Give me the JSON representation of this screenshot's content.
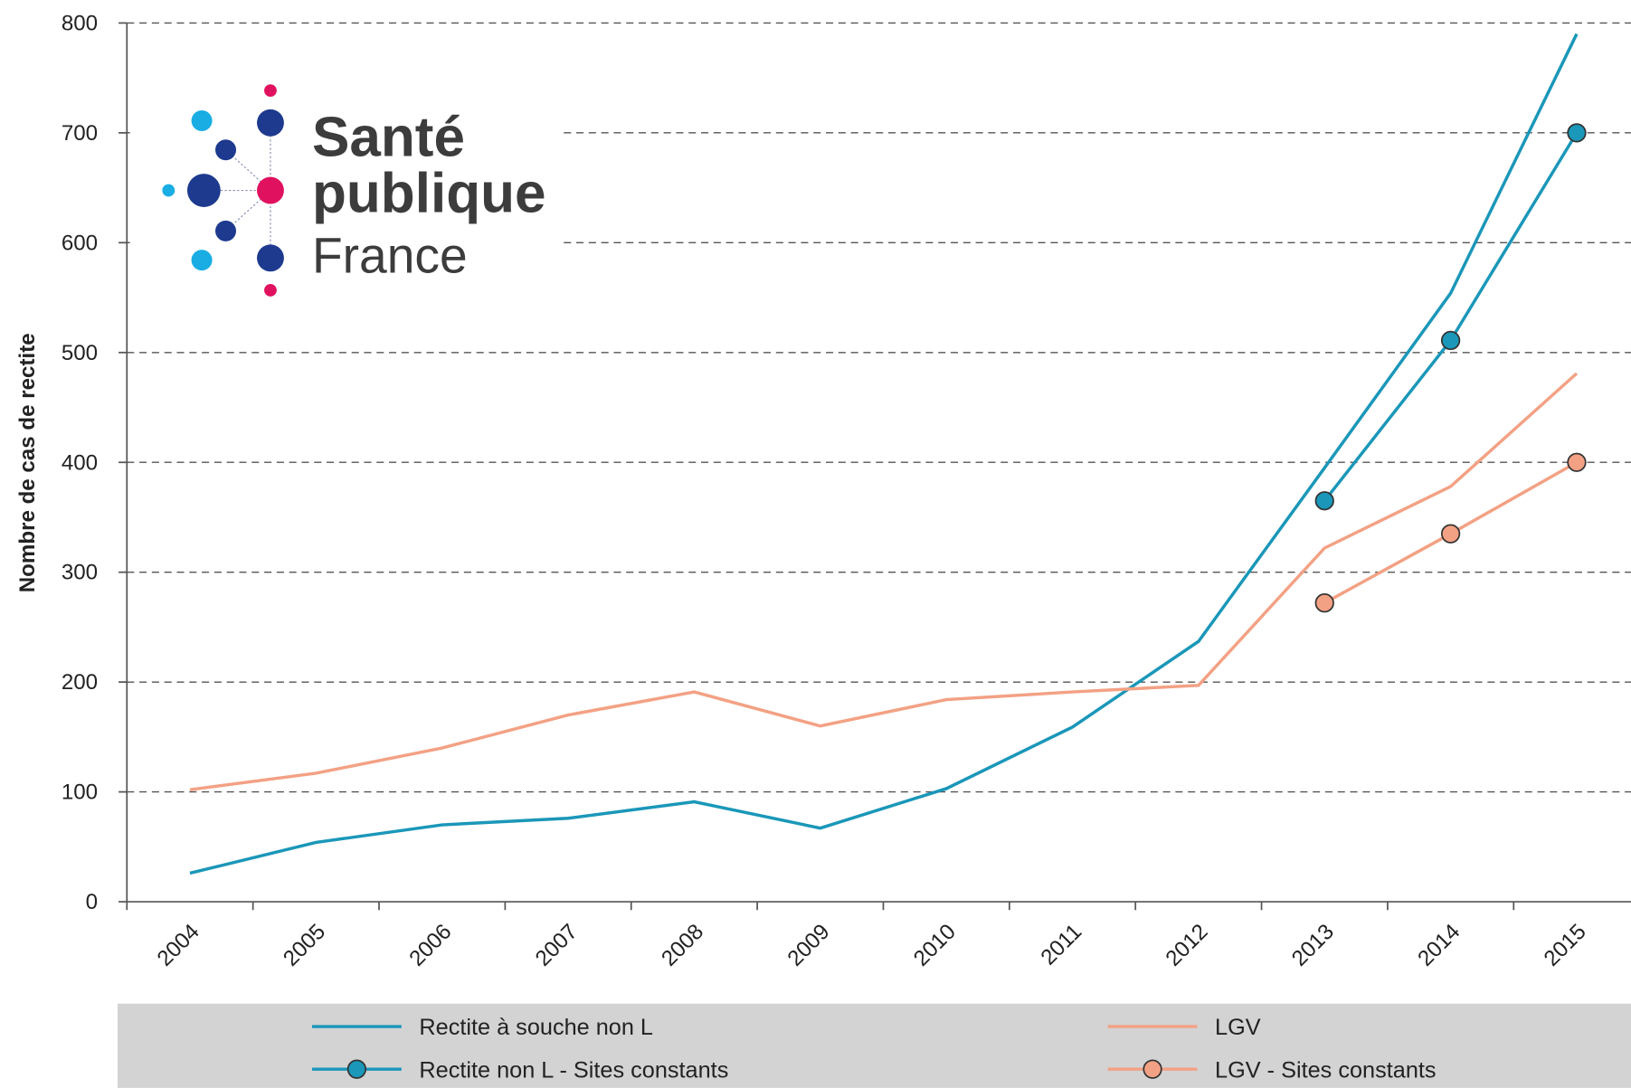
{
  "chart_data": {
    "type": "line",
    "y_label": "Nombre de cas de rectite",
    "categories": [
      "2004",
      "2005",
      "2006",
      "2007",
      "2008",
      "2009",
      "2010",
      "2011",
      "2012",
      "2013",
      "2014",
      "2015"
    ],
    "series": [
      {
        "name": "Rectite à souche non L",
        "color": "#1a97b9",
        "marker": false,
        "values": [
          26,
          54,
          70,
          76,
          91,
          67,
          103,
          159,
          237,
          395,
          554,
          790
        ]
      },
      {
        "name": "LGV",
        "color": "#f3a184",
        "marker": false,
        "values": [
          102,
          117,
          140,
          170,
          191,
          160,
          184,
          191,
          197,
          322,
          378,
          481
        ]
      },
      {
        "name": "Rectite non L - Sites constants",
        "color": "#1a97b9",
        "marker": true,
        "values": [
          null,
          null,
          null,
          null,
          null,
          null,
          null,
          null,
          null,
          365,
          511,
          700
        ]
      },
      {
        "name": "LGV - Sites constants",
        "color": "#f3a184",
        "marker": true,
        "values": [
          null,
          null,
          null,
          null,
          null,
          null,
          null,
          null,
          null,
          272,
          335,
          400
        ]
      }
    ],
    "ylim": [
      0,
      800
    ],
    "yticks": [
      0,
      100,
      200,
      300,
      400,
      500,
      600,
      700,
      800
    ],
    "grid": true
  },
  "logo": {
    "line1": "Santé",
    "line2": "publique",
    "line3": "France"
  }
}
